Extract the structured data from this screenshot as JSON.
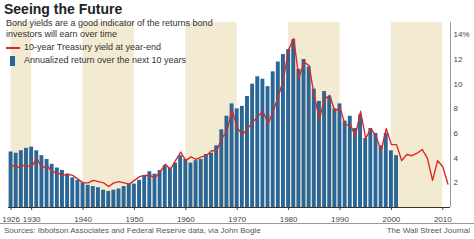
{
  "chart_data": {
    "type": "bar",
    "title": "Seeing the Future",
    "subtitle": "Bond yields are a good indicator of the returns bond investors will earn over time",
    "source": "Sources: Ibbotson Associates and Federal Reserve data, via John Bogle",
    "credit": "The Wall Street Journal",
    "legend": "top-left",
    "grid": false,
    "x": [
      1926,
      1927,
      1928,
      1929,
      1930,
      1931,
      1932,
      1933,
      1934,
      1935,
      1936,
      1937,
      1938,
      1939,
      1940,
      1941,
      1942,
      1943,
      1944,
      1945,
      1946,
      1947,
      1948,
      1949,
      1950,
      1951,
      1952,
      1953,
      1954,
      1955,
      1956,
      1957,
      1958,
      1959,
      1960,
      1961,
      1962,
      1963,
      1964,
      1965,
      1966,
      1967,
      1968,
      1969,
      1970,
      1971,
      1972,
      1973,
      1974,
      1975,
      1976,
      1977,
      1978,
      1979,
      1980,
      1981,
      1982,
      1983,
      1984,
      1985,
      1986,
      1987,
      1988,
      1989,
      1990,
      1991,
      1992,
      1993,
      1994,
      1995,
      1996,
      1997,
      1998,
      1999,
      2000,
      2001,
      2002,
      2003,
      2004,
      2005,
      2006,
      2007,
      2008,
      2009,
      2010,
      2011
    ],
    "xlim": [
      1925.5,
      2011.5
    ],
    "xticks": [
      1926,
      1930,
      1940,
      1950,
      1960,
      1970,
      1980,
      1990,
      2000,
      2010
    ],
    "ylim": [
      0,
      15
    ],
    "yticks": [
      2,
      4,
      6,
      8,
      10,
      12,
      {
        "value": 14,
        "label": "14%"
      }
    ],
    "series": [
      {
        "name": "10-year Treasury yield at year-end",
        "type": "line",
        "color": "#d42b26",
        "values": [
          3.5,
          3.2,
          3.4,
          3.4,
          3.3,
          4.0,
          3.2,
          3.4,
          2.9,
          2.8,
          2.6,
          2.7,
          2.6,
          2.3,
          2.0,
          2.0,
          2.2,
          2.1,
          2.0,
          1.7,
          2.0,
          2.1,
          2.0,
          1.9,
          2.2,
          2.5,
          2.6,
          2.6,
          2.4,
          2.9,
          3.5,
          3.1,
          3.8,
          4.5,
          3.8,
          4.1,
          3.9,
          4.1,
          4.2,
          4.6,
          4.6,
          5.6,
          6.2,
          7.9,
          6.5,
          5.9,
          6.4,
          6.9,
          7.4,
          7.8,
          6.8,
          7.8,
          9.0,
          10.4,
          12.8,
          13.7,
          10.5,
          11.8,
          11.5,
          9.0,
          7.2,
          8.8,
          9.1,
          7.8,
          8.1,
          6.7,
          6.7,
          5.8,
          7.8,
          5.6,
          6.4,
          5.8,
          4.6,
          6.4,
          5.1,
          5.1,
          3.8,
          4.3,
          4.2,
          4.4,
          4.7,
          4.0,
          2.2,
          3.8,
          3.3,
          1.9
        ]
      },
      {
        "name": "Annualized return over the next 10 years",
        "type": "bar",
        "color": "#2a6796",
        "values": [
          4.5,
          4.4,
          4.6,
          4.8,
          4.9,
          4.6,
          4.2,
          3.9,
          3.5,
          3.2,
          3.0,
          2.7,
          2.4,
          2.2,
          2.0,
          1.8,
          1.7,
          1.6,
          1.4,
          1.3,
          1.4,
          1.5,
          1.7,
          1.9,
          1.9,
          2.2,
          2.6,
          2.9,
          2.7,
          3.0,
          3.4,
          3.2,
          3.6,
          4.2,
          3.9,
          3.6,
          3.8,
          3.9,
          4.3,
          4.4,
          5.0,
          6.3,
          7.4,
          8.4,
          8.0,
          8.2,
          9.0,
          10.0,
          10.6,
          10.4,
          9.8,
          11.0,
          11.8,
          12.4,
          12.8,
          13.6,
          11.2,
          12.0,
          11.4,
          9.6,
          8.6,
          9.4,
          9.0,
          8.0,
          8.4,
          7.0,
          7.4,
          6.4,
          7.5,
          5.6,
          6.4,
          6.0,
          5.0,
          6.0,
          4.6,
          4.2,
          null,
          null,
          null,
          null,
          null,
          null,
          null,
          null,
          null,
          null
        ]
      }
    ]
  }
}
